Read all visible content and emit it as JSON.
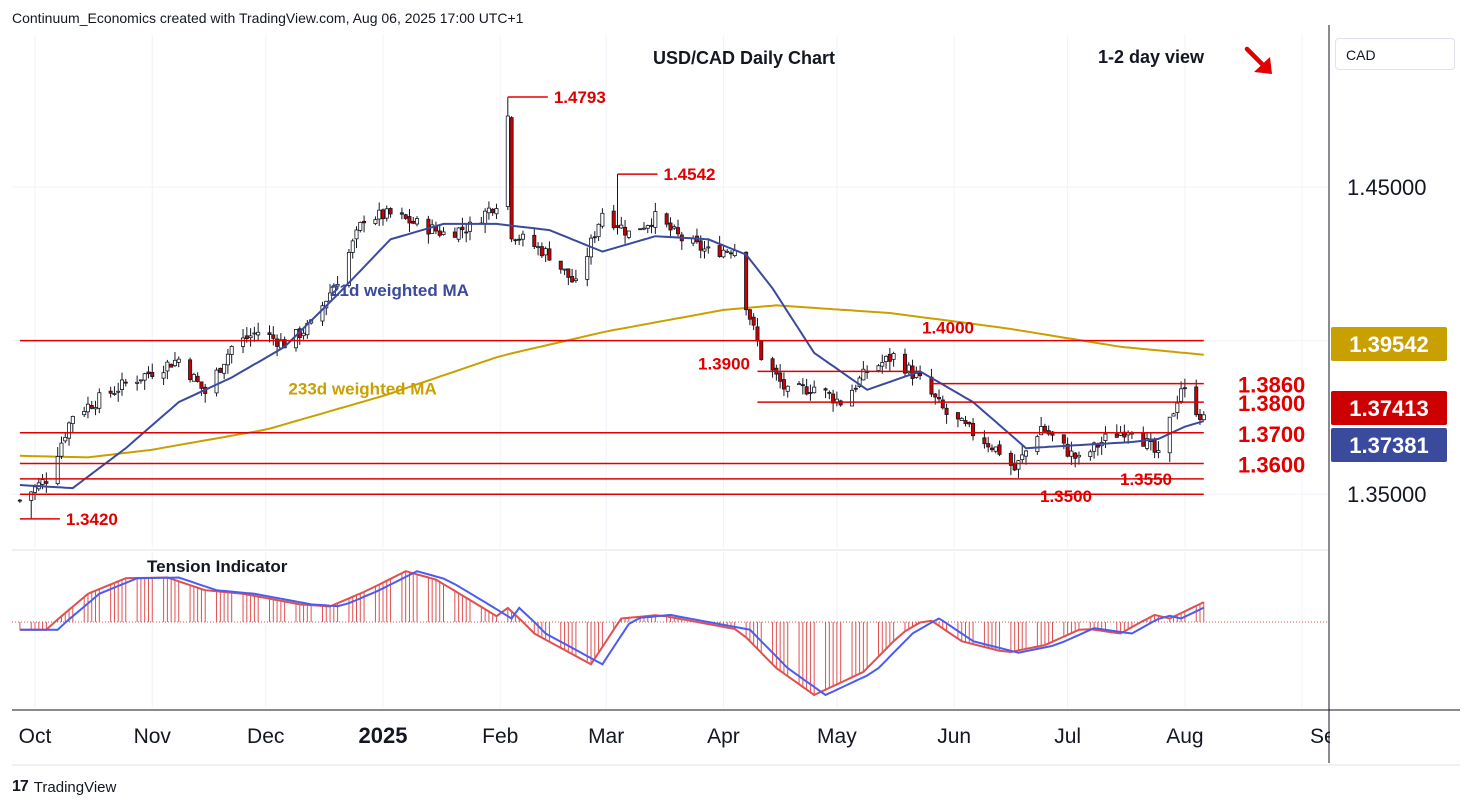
{
  "header": {
    "credit": "Continuum_Economics created with TradingView.com, Aug 06, 2025 17:00 UTC+1"
  },
  "currency_selector": {
    "label": "CAD"
  },
  "brand": {
    "logo": "17",
    "name": "TradingView"
  },
  "colors": {
    "up": "#ffffff",
    "down": "#cc0000",
    "level": "#e00000",
    "ma21": "#3a4a9c",
    "ma233": "#c8a000",
    "ti_fast": "#4b5cf0",
    "ti_slow": "#e05050"
  },
  "chart_data": {
    "type": "candlestick",
    "title": "USD/CAD Daily Chart",
    "view_label": "1-2 day view",
    "view_arrow": "down-right",
    "ylim": [
      1.3325,
      1.4995
    ],
    "y_ticks": [
      {
        "value": 1.45,
        "label": "1.45000"
      },
      {
        "value": 1.4,
        "label": "1.40000"
      },
      {
        "value": 1.35,
        "label": "1.35000"
      }
    ],
    "x_ticks": [
      {
        "month": "2024-10-01",
        "label": "Oct",
        "bold": false
      },
      {
        "month": "2024-11-01",
        "label": "Nov",
        "bold": false
      },
      {
        "month": "2024-12-01",
        "label": "Dec",
        "bold": false
      },
      {
        "month": "2025-01-01",
        "label": "2025",
        "bold": true
      },
      {
        "month": "2025-02-01",
        "label": "Feb",
        "bold": false
      },
      {
        "month": "2025-03-01",
        "label": "Mar",
        "bold": false
      },
      {
        "month": "2025-04-01",
        "label": "Apr",
        "bold": false
      },
      {
        "month": "2025-05-01",
        "label": "May",
        "bold": false
      },
      {
        "month": "2025-06-01",
        "label": "Jun",
        "bold": false
      },
      {
        "month": "2025-07-01",
        "label": "Jul",
        "bold": false
      },
      {
        "month": "2025-08-01",
        "label": "Aug",
        "bold": false
      },
      {
        "month": "2025-09-01",
        "label": "Sep",
        "bold": false
      }
    ],
    "price_badges": [
      {
        "label": "1.39542",
        "value": 1.39542,
        "color": "#c8a000"
      },
      {
        "label": "1.37413",
        "value": 1.37413,
        "color": "#cc0000"
      },
      {
        "label": "1.37381",
        "value": 1.37381,
        "color": "#3a4a9c"
      }
    ],
    "levels": [
      {
        "value": 1.4,
        "label": "1.4000",
        "start": "2024-09-27",
        "end": "2025-08-06"
      },
      {
        "value": 1.39,
        "label": "1.3900",
        "start": "2025-04-10",
        "end": "2025-05-23"
      },
      {
        "value": 1.386,
        "label": "1.3860",
        "start": "2025-05-26",
        "end": "2025-08-06"
      },
      {
        "value": 1.38,
        "label": "1.3800",
        "start": "2025-04-10",
        "end": "2025-08-06"
      },
      {
        "value": 1.37,
        "label": "1.3700",
        "start": "2024-09-27",
        "end": "2025-08-06"
      },
      {
        "value": 1.36,
        "label": "1.3600",
        "start": "2024-09-27",
        "end": "2025-08-06"
      },
      {
        "value": 1.355,
        "label": "1.3550",
        "start": "2024-09-27",
        "end": "2025-08-06"
      },
      {
        "value": 1.35,
        "label": "1.3500",
        "start": "2024-09-27",
        "end": "2025-08-06"
      }
    ],
    "peak_labels": [
      {
        "date": "2025-02-03",
        "value": 1.4793,
        "label": "1.4793"
      },
      {
        "date": "2025-03-04",
        "value": 1.4542,
        "label": "1.4542"
      },
      {
        "date": "2024-09-27",
        "value": 1.342,
        "label": "1.3420"
      }
    ],
    "annotations": [
      {
        "text": "21d weighted MA",
        "date": "2024-12-18",
        "value": 1.4145,
        "color": "#3a4a9c"
      },
      {
        "text": "233d weighted MA",
        "date": "2024-12-07",
        "value": 1.3825,
        "color": "#c8a000"
      }
    ],
    "anchors": [
      [
        "2024-09-27",
        1.348
      ],
      [
        "2024-10-04",
        1.355
      ],
      [
        "2024-10-11",
        1.376
      ],
      [
        "2024-10-18",
        1.381
      ],
      [
        "2024-10-25",
        1.386
      ],
      [
        "2024-11-01",
        1.39
      ],
      [
        "2024-11-08",
        1.394
      ],
      [
        "2024-11-15",
        1.383
      ],
      [
        "2024-11-22",
        1.398
      ],
      [
        "2024-11-29",
        1.403
      ],
      [
        "2024-12-06",
        1.399
      ],
      [
        "2024-12-13",
        1.405
      ],
      [
        "2024-12-20",
        1.42
      ],
      [
        "2024-12-27",
        1.44
      ],
      [
        "2025-01-03",
        1.441
      ],
      [
        "2025-01-10",
        1.438
      ],
      [
        "2025-01-17",
        1.435
      ],
      [
        "2025-01-24",
        1.437
      ],
      [
        "2025-01-31",
        1.445
      ],
      [
        "2025-02-03",
        1.473
      ],
      [
        "2025-02-04",
        1.435
      ],
      [
        "2025-02-14",
        1.428
      ],
      [
        "2025-02-21",
        1.418
      ],
      [
        "2025-02-28",
        1.442
      ],
      [
        "2025-03-07",
        1.435
      ],
      [
        "2025-03-14",
        1.44
      ],
      [
        "2025-03-21",
        1.433
      ],
      [
        "2025-03-28",
        1.429
      ],
      [
        "2025-04-04",
        1.43
      ],
      [
        "2025-04-07",
        1.412
      ],
      [
        "2025-04-11",
        1.395
      ],
      [
        "2025-04-18",
        1.383
      ],
      [
        "2025-04-25",
        1.385
      ],
      [
        "2025-05-02",
        1.38
      ],
      [
        "2025-05-09",
        1.39
      ],
      [
        "2025-05-16",
        1.395
      ],
      [
        "2025-05-23",
        1.387
      ],
      [
        "2025-05-30",
        1.376
      ],
      [
        "2025-06-06",
        1.37
      ],
      [
        "2025-06-13",
        1.364
      ],
      [
        "2025-06-17",
        1.358
      ],
      [
        "2025-06-24",
        1.372
      ],
      [
        "2025-07-01",
        1.364
      ],
      [
        "2025-07-04",
        1.361
      ],
      [
        "2025-07-11",
        1.368
      ],
      [
        "2025-07-18",
        1.372
      ],
      [
        "2025-07-23",
        1.365
      ],
      [
        "2025-07-25",
        1.362
      ],
      [
        "2025-07-31",
        1.385
      ],
      [
        "2025-08-06",
        1.3741
      ]
    ],
    "ma21_anchors": [
      [
        "2024-09-27",
        1.353
      ],
      [
        "2024-10-11",
        1.352
      ],
      [
        "2024-10-25",
        1.365
      ],
      [
        "2024-11-08",
        1.38
      ],
      [
        "2024-11-22",
        1.388
      ],
      [
        "2024-12-06",
        1.398
      ],
      [
        "2024-12-20",
        1.415
      ],
      [
        "2025-01-03",
        1.433
      ],
      [
        "2025-01-17",
        1.438
      ],
      [
        "2025-01-31",
        1.438
      ],
      [
        "2025-02-14",
        1.436
      ],
      [
        "2025-02-28",
        1.429
      ],
      [
        "2025-03-14",
        1.434
      ],
      [
        "2025-03-28",
        1.433
      ],
      [
        "2025-04-07",
        1.428
      ],
      [
        "2025-04-14",
        1.417
      ],
      [
        "2025-04-25",
        1.396
      ],
      [
        "2025-05-09",
        1.384
      ],
      [
        "2025-05-23",
        1.39
      ],
      [
        "2025-06-06",
        1.38
      ],
      [
        "2025-06-20",
        1.365
      ],
      [
        "2025-07-04",
        1.366
      ],
      [
        "2025-07-18",
        1.367
      ],
      [
        "2025-07-25",
        1.368
      ],
      [
        "2025-08-01",
        1.372
      ],
      [
        "2025-08-06",
        1.37381
      ]
    ],
    "ma233_anchors": [
      [
        "2024-09-27",
        1.3625
      ],
      [
        "2024-10-15",
        1.362
      ],
      [
        "2024-11-01",
        1.3645
      ],
      [
        "2024-12-01",
        1.371
      ],
      [
        "2025-01-01",
        1.382
      ],
      [
        "2025-02-01",
        1.395
      ],
      [
        "2025-03-01",
        1.403
      ],
      [
        "2025-04-01",
        1.41
      ],
      [
        "2025-04-15",
        1.4115
      ],
      [
        "2025-05-15",
        1.409
      ],
      [
        "2025-06-15",
        1.404
      ],
      [
        "2025-07-15",
        1.398
      ],
      [
        "2025-08-06",
        1.39542
      ]
    ],
    "tension_indicator": {
      "title": "Tension Indicator",
      "ylim": [
        -0.95,
        0.85
      ],
      "anchors": [
        [
          "2024-09-27",
          -0.1
        ],
        [
          "2024-10-04",
          -0.1
        ],
        [
          "2024-10-15",
          0.4
        ],
        [
          "2024-10-25",
          0.62
        ],
        [
          "2024-11-05",
          0.63
        ],
        [
          "2024-11-15",
          0.45
        ],
        [
          "2024-11-25",
          0.4
        ],
        [
          "2024-12-10",
          0.25
        ],
        [
          "2024-12-18",
          0.22
        ],
        [
          "2024-12-28",
          0.45
        ],
        [
          "2025-01-07",
          0.72
        ],
        [
          "2025-01-15",
          0.6
        ],
        [
          "2025-01-25",
          0.28
        ],
        [
          "2025-02-01",
          0.05
        ],
        [
          "2025-02-03",
          0.2
        ],
        [
          "2025-02-10",
          -0.15
        ],
        [
          "2025-02-25",
          -0.55
        ],
        [
          "2025-03-05",
          0.05
        ],
        [
          "2025-03-15",
          0.1
        ],
        [
          "2025-03-25",
          0.0
        ],
        [
          "2025-04-05",
          -0.1
        ],
        [
          "2025-04-15",
          -0.6
        ],
        [
          "2025-04-25",
          -0.95
        ],
        [
          "2025-05-08",
          -0.65
        ],
        [
          "2025-05-18",
          -0.15
        ],
        [
          "2025-05-25",
          0.05
        ],
        [
          "2025-06-03",
          -0.25
        ],
        [
          "2025-06-15",
          -0.4
        ],
        [
          "2025-06-25",
          -0.3
        ],
        [
          "2025-07-05",
          -0.08
        ],
        [
          "2025-07-15",
          -0.15
        ],
        [
          "2025-07-24",
          0.1
        ],
        [
          "2025-07-28",
          0.05
        ],
        [
          "2025-08-06",
          0.28
        ]
      ]
    }
  }
}
